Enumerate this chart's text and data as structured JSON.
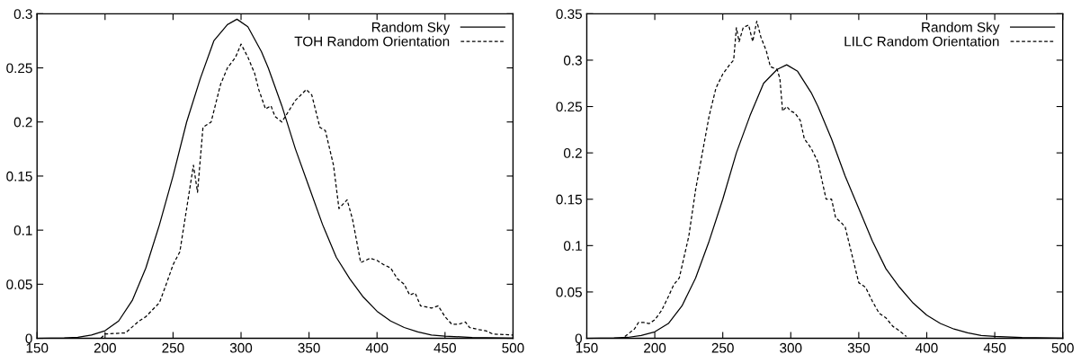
{
  "chart_data": [
    {
      "type": "line",
      "xlim": [
        150,
        500
      ],
      "ylim": [
        0,
        0.3
      ],
      "xticks": [
        150,
        200,
        250,
        300,
        350,
        400,
        450,
        500
      ],
      "yticks": [
        0,
        0.05,
        0.1,
        0.15,
        0.2,
        0.25,
        0.3
      ],
      "legend": "top right",
      "grid": false,
      "marker": "none",
      "series": [
        {
          "name": "Random Sky",
          "color": "#000000",
          "line_style": "solid",
          "x": [
            150,
            170,
            180,
            190,
            200,
            210,
            220,
            230,
            240,
            250,
            260,
            270,
            280,
            290,
            297,
            305,
            315,
            320,
            330,
            340,
            350,
            360,
            370,
            380,
            390,
            400,
            410,
            420,
            430,
            440,
            450,
            470,
            500
          ],
          "values": [
            0,
            0.0003,
            0.001,
            0.003,
            0.007,
            0.016,
            0.035,
            0.065,
            0.105,
            0.15,
            0.2,
            0.24,
            0.275,
            0.29,
            0.295,
            0.288,
            0.265,
            0.25,
            0.215,
            0.175,
            0.14,
            0.105,
            0.075,
            0.055,
            0.038,
            0.025,
            0.016,
            0.01,
            0.006,
            0.003,
            0.002,
            0.0008,
            0.0002
          ]
        },
        {
          "name": "TOH Random Orientation",
          "color": "#000000",
          "line_style": "dashed",
          "x": [
            197,
            200,
            215,
            225,
            230,
            240,
            245,
            250,
            255,
            260,
            265,
            268,
            272,
            278,
            285,
            290,
            296,
            300,
            305,
            310,
            313,
            318,
            322,
            325,
            330,
            335,
            340,
            348,
            352,
            358,
            362,
            368,
            372,
            378,
            382,
            388,
            395,
            400,
            405,
            410,
            415,
            420,
            424,
            428,
            432,
            440,
            445,
            450,
            455,
            460,
            465,
            468,
            475,
            480,
            485,
            500
          ],
          "values": [
            0,
            0.004,
            0.005,
            0.016,
            0.02,
            0.033,
            0.05,
            0.068,
            0.08,
            0.12,
            0.16,
            0.135,
            0.195,
            0.2,
            0.235,
            0.25,
            0.26,
            0.272,
            0.26,
            0.245,
            0.23,
            0.212,
            0.215,
            0.205,
            0.2,
            0.21,
            0.22,
            0.23,
            0.225,
            0.195,
            0.192,
            0.16,
            0.12,
            0.128,
            0.11,
            0.07,
            0.074,
            0.072,
            0.068,
            0.065,
            0.055,
            0.05,
            0.04,
            0.042,
            0.03,
            0.028,
            0.03,
            0.02,
            0.013,
            0.013,
            0.015,
            0.01,
            0.008,
            0.007,
            0.004,
            0.003
          ]
        }
      ]
    },
    {
      "type": "line",
      "xlim": [
        150,
        500
      ],
      "ylim": [
        0,
        0.35
      ],
      "xticks": [
        150,
        200,
        250,
        300,
        350,
        400,
        450,
        500
      ],
      "yticks": [
        0,
        0.05,
        0.1,
        0.15,
        0.2,
        0.25,
        0.3,
        0.35
      ],
      "legend": "top right",
      "grid": false,
      "marker": "none",
      "series": [
        {
          "name": "Random Sky",
          "color": "#000000",
          "line_style": "solid",
          "x": [
            150,
            170,
            180,
            190,
            200,
            210,
            220,
            230,
            240,
            250,
            260,
            270,
            280,
            290,
            297,
            305,
            315,
            320,
            330,
            340,
            350,
            360,
            370,
            380,
            390,
            400,
            410,
            420,
            430,
            440,
            450,
            470,
            500
          ],
          "values": [
            0,
            0.0003,
            0.001,
            0.003,
            0.007,
            0.016,
            0.035,
            0.065,
            0.105,
            0.15,
            0.2,
            0.24,
            0.275,
            0.29,
            0.295,
            0.288,
            0.265,
            0.25,
            0.215,
            0.175,
            0.14,
            0.105,
            0.075,
            0.055,
            0.038,
            0.025,
            0.016,
            0.01,
            0.006,
            0.003,
            0.002,
            0.0008,
            0.0002
          ]
        },
        {
          "name": "LILC Random Orientation",
          "color": "#000000",
          "line_style": "dashed",
          "x": [
            178,
            185,
            188,
            192,
            196,
            200,
            205,
            210,
            214,
            218,
            225,
            230,
            235,
            240,
            245,
            250,
            255,
            258,
            260,
            262,
            265,
            269,
            272,
            275,
            278,
            282,
            285,
            290,
            292,
            294,
            297,
            300,
            303,
            307,
            310,
            315,
            320,
            323,
            326,
            330,
            333,
            337,
            340,
            345,
            350,
            355,
            360,
            365,
            370,
            375,
            380,
            385
          ],
          "values": [
            0.002,
            0.01,
            0.017,
            0.017,
            0.016,
            0.02,
            0.03,
            0.045,
            0.058,
            0.065,
            0.11,
            0.16,
            0.2,
            0.24,
            0.27,
            0.285,
            0.295,
            0.3,
            0.335,
            0.32,
            0.335,
            0.338,
            0.32,
            0.342,
            0.325,
            0.31,
            0.293,
            0.29,
            0.28,
            0.245,
            0.25,
            0.245,
            0.243,
            0.235,
            0.215,
            0.205,
            0.19,
            0.17,
            0.15,
            0.15,
            0.13,
            0.125,
            0.12,
            0.09,
            0.06,
            0.055,
            0.04,
            0.027,
            0.022,
            0.013,
            0.008,
            0.002
          ]
        }
      ]
    }
  ]
}
